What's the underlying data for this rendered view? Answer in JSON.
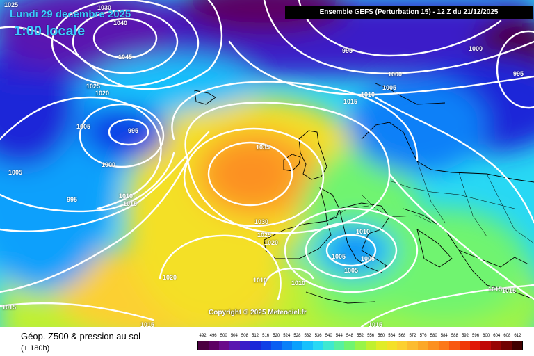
{
  "header": {
    "date": "Lundi 29 decembre 2025",
    "time": "1:00 locale",
    "run": "Ensemble GEFS  (Perturbation 15)  -  12 Z du 21/12/2025"
  },
  "copyright": "Copyright © 2025 Meteociel.fr",
  "footer": {
    "title": "Géop. Z500 & pression au sol",
    "subtitle": "(+ 180h)"
  },
  "isobar_labels": [
    {
      "text": "1025"
    },
    {
      "text": "1030"
    },
    {
      "text": "1040"
    },
    {
      "text": "1045"
    },
    {
      "text": "1025"
    },
    {
      "text": "1020"
    },
    {
      "text": "1005"
    },
    {
      "text": "995"
    },
    {
      "text": "1005"
    },
    {
      "text": "1000"
    },
    {
      "text": "995"
    },
    {
      "text": "1010"
    },
    {
      "text": "1015"
    },
    {
      "text": "995"
    },
    {
      "text": "1000"
    },
    {
      "text": "995"
    },
    {
      "text": "1000"
    },
    {
      "text": "1010"
    },
    {
      "text": "1005"
    },
    {
      "text": "1015"
    },
    {
      "text": "1035"
    },
    {
      "text": "1030"
    },
    {
      "text": "1025"
    },
    {
      "text": "1020"
    },
    {
      "text": "1010"
    },
    {
      "text": "1005"
    },
    {
      "text": "1005"
    },
    {
      "text": "1005"
    },
    {
      "text": "1010"
    },
    {
      "text": "1010"
    },
    {
      "text": "1020"
    },
    {
      "text": "1015"
    },
    {
      "text": "1015"
    },
    {
      "text": "1015"
    },
    {
      "text": "1015"
    },
    {
      "text": "1015"
    }
  ],
  "legend": {
    "ticks": [
      "492",
      "496",
      "500",
      "504",
      "508",
      "512",
      "516",
      "520",
      "524",
      "528",
      "532",
      "536",
      "540",
      "544",
      "548",
      "552",
      "556",
      "560",
      "564",
      "568",
      "572",
      "576",
      "580",
      "584",
      "588",
      "592",
      "596",
      "600",
      "604",
      "608",
      "612"
    ],
    "colors": [
      "#4b0040",
      "#5c0063",
      "#6a0a8a",
      "#5a16b0",
      "#3a1cc8",
      "#1a28d8",
      "#1040e6",
      "#0a5ef2",
      "#0a80f8",
      "#0aa0fc",
      "#18c0fc",
      "#28d8f4",
      "#40e8d0",
      "#58f0a0",
      "#70f470",
      "#98f448",
      "#c0f030",
      "#e0ec28",
      "#f4e028",
      "#fcd030",
      "#fcbc30",
      "#fca828",
      "#fc9020",
      "#fc7818",
      "#f85810",
      "#f03808",
      "#e01808",
      "#c00808",
      "#980404",
      "#700202",
      "#400000"
    ]
  },
  "colors": {
    "title_text": "#3cc8ff",
    "isobar": "#ffffff",
    "run_box_bg": "#000000"
  }
}
